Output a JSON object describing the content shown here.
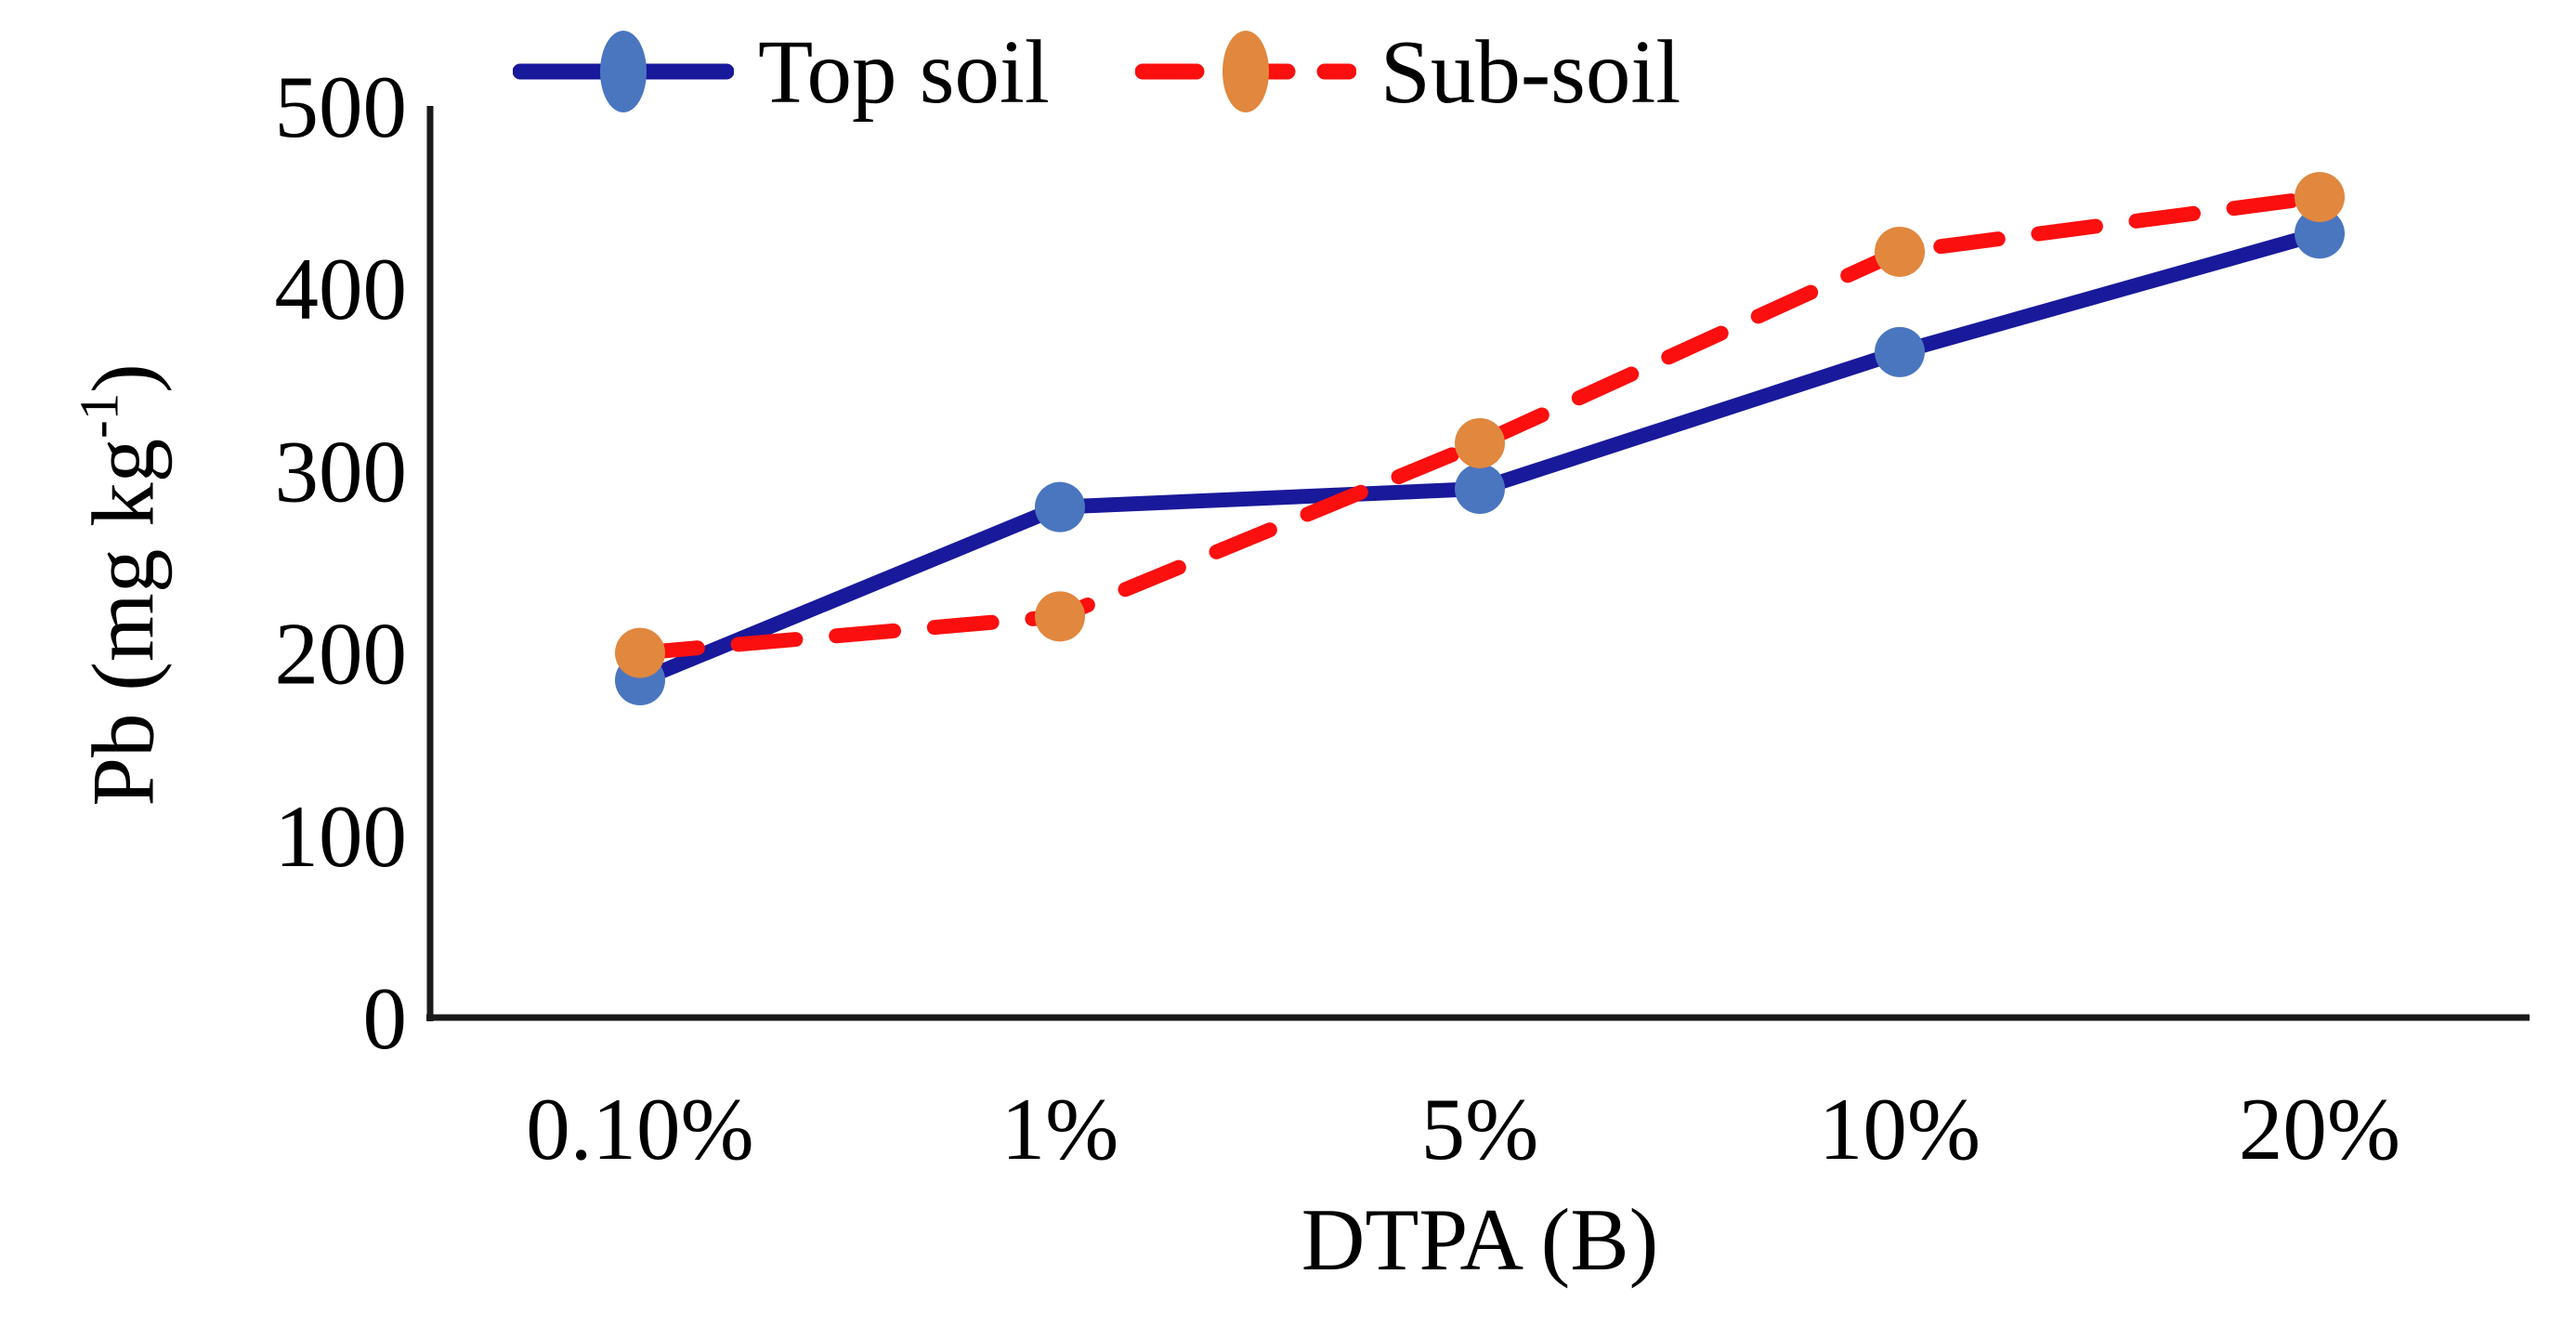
{
  "chart_data": {
    "type": "line",
    "title": "",
    "categories": [
      "0.10%",
      "1%",
      "5%",
      "10%",
      "20%"
    ],
    "series": [
      {
        "name": "Top soil",
        "values": [
          185,
          280,
          290,
          365,
          430
        ],
        "line_color": "#19199B",
        "marker_color": "#4A76C0",
        "line_style": "solid"
      },
      {
        "name": "Sub-soil",
        "values": [
          200,
          220,
          315,
          420,
          450
        ],
        "line_color": "#FB0F0F",
        "marker_color": "#E1873E",
        "line_style": "dashed"
      }
    ],
    "xlabel": "DTPA (B)",
    "ylabel": "Pb (mg kg-1)",
    "ylabel_parts": {
      "prefix": "Pb (mg kg",
      "superscript": "-1",
      "suffix": ")"
    },
    "ylim": [
      0,
      500
    ],
    "yticks": [
      0,
      100,
      200,
      300,
      400,
      500
    ],
    "grid": false,
    "legend_position": "top",
    "axis_color": "#1a1a1a",
    "background_color": "#ffffff"
  }
}
